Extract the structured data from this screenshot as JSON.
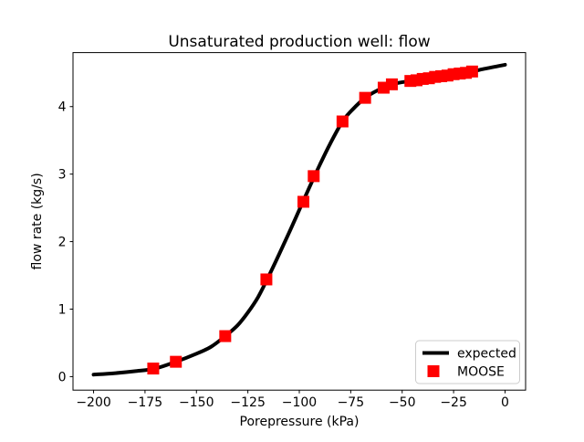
{
  "figure": {
    "title": "Unsaturated production well: flow",
    "xlabel": "Porepressure (kPa)",
    "ylabel": "flow rate (kg/s)",
    "background": "#ffffff"
  },
  "chart_data": {
    "type": "line",
    "title": "Unsaturated production well: flow",
    "xlabel": "Porepressure (kPa)",
    "ylabel": "flow rate (kg/s)",
    "xlim": [
      -210,
      10
    ],
    "ylim": [
      -0.2,
      4.8
    ],
    "grid": false,
    "xticks": {
      "values": [
        -200,
        -175,
        -150,
        -125,
        -100,
        -75,
        -50,
        -25,
        0
      ],
      "labels": [
        "−200",
        "−175",
        "−150",
        "−125",
        "−100",
        "−75",
        "−50",
        "−25",
        "0"
      ]
    },
    "yticks": {
      "values": [
        0,
        1,
        2,
        3,
        4
      ],
      "labels": [
        "0",
        "1",
        "2",
        "3",
        "4"
      ]
    },
    "legend": {
      "position": "lower right",
      "entries": [
        {
          "label": "expected",
          "type": "line",
          "color": "#000000"
        },
        {
          "label": "MOOSE",
          "type": "square-marker",
          "color": "#ff0000"
        }
      ]
    },
    "series": [
      {
        "name": "expected",
        "type": "line",
        "color": "#000000",
        "linewidth": 4,
        "points": [
          [
            -200,
            0.03
          ],
          [
            -190,
            0.05
          ],
          [
            -180,
            0.08
          ],
          [
            -170,
            0.12
          ],
          [
            -160,
            0.22
          ],
          [
            -150,
            0.34
          ],
          [
            -143,
            0.44
          ],
          [
            -136,
            0.6
          ],
          [
            -130,
            0.76
          ],
          [
            -125,
            0.95
          ],
          [
            -120,
            1.18
          ],
          [
            -115,
            1.48
          ],
          [
            -110,
            1.8
          ],
          [
            -105,
            2.13
          ],
          [
            -100,
            2.47
          ],
          [
            -95,
            2.81
          ],
          [
            -90,
            3.14
          ],
          [
            -85,
            3.45
          ],
          [
            -79,
            3.78
          ],
          [
            -74,
            3.96
          ],
          [
            -68,
            4.13
          ],
          [
            -62,
            4.24
          ],
          [
            -55,
            4.33
          ],
          [
            -46,
            4.38
          ],
          [
            -37,
            4.42
          ],
          [
            -28,
            4.46
          ],
          [
            -19,
            4.5
          ],
          [
            -10,
            4.56
          ],
          [
            0,
            4.62
          ]
        ]
      },
      {
        "name": "MOOSE",
        "type": "scatter",
        "marker": "square",
        "color": "#ff0000",
        "markersize": 13,
        "points": [
          [
            -171,
            0.12
          ],
          [
            -160,
            0.22
          ],
          [
            -136,
            0.6
          ],
          [
            -116,
            1.44
          ],
          [
            -98,
            2.59
          ],
          [
            -93,
            2.97
          ],
          [
            -79,
            3.78
          ],
          [
            -68,
            4.13
          ],
          [
            -59,
            4.28
          ],
          [
            -55,
            4.33
          ],
          [
            -46,
            4.38
          ],
          [
            -43,
            4.39
          ],
          [
            -40,
            4.41
          ],
          [
            -37,
            4.42
          ],
          [
            -34,
            4.44
          ],
          [
            -31,
            4.45
          ],
          [
            -28,
            4.46
          ],
          [
            -25,
            4.48
          ],
          [
            -22,
            4.49
          ],
          [
            -19,
            4.5
          ],
          [
            -16,
            4.52
          ]
        ]
      }
    ],
    "frame_color": "#000000",
    "legend_border_color": "#cccccc"
  }
}
